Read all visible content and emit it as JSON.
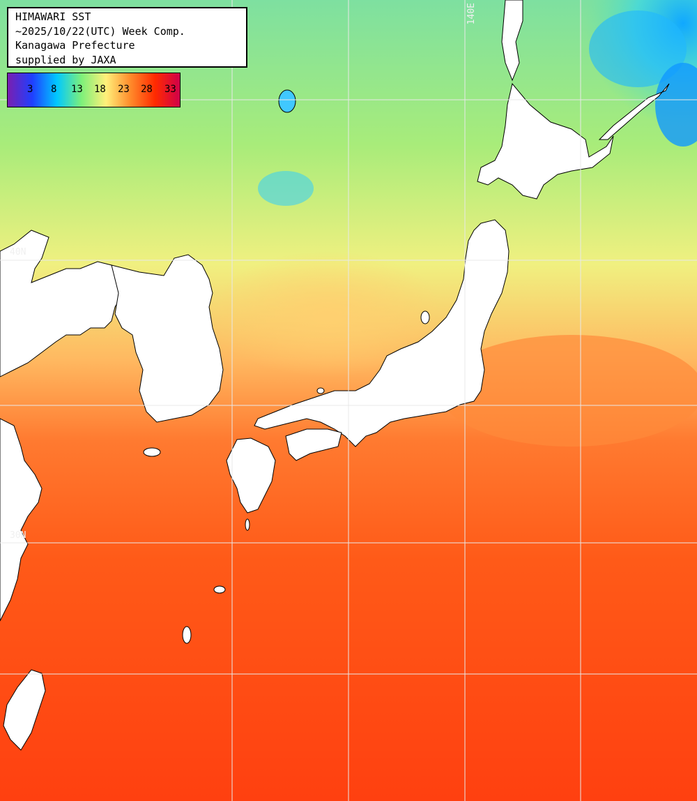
{
  "title": {
    "line1": "HIMAWARI SST",
    "line2": "~2025/10/22(UTC) Week Comp.",
    "line3": "Kanagawa Prefecture",
    "line4": "supplied by JAXA"
  },
  "legend": {
    "ticks": [
      "3",
      "8",
      "13",
      "18",
      "23",
      "28",
      "33"
    ],
    "colors": [
      "#7a1fb0",
      "#1f3fff",
      "#00c8ff",
      "#7df07a",
      "#fff07a",
      "#ff8a2a",
      "#ff2a00",
      "#d0004a"
    ]
  },
  "grid_labels": {
    "lon_140": "140E",
    "lat_40": "40N",
    "lat_30": "30N"
  },
  "colors": {
    "land": "#ffffff",
    "coast": "#000000",
    "grid": "#e8e8e8",
    "warm_sea": "#ff4a10"
  }
}
